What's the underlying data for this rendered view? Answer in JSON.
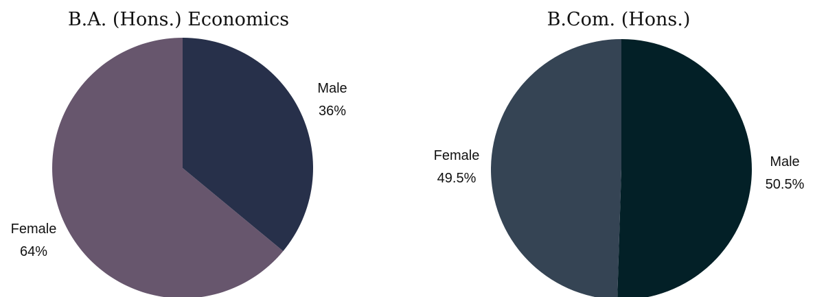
{
  "chart_data": [
    {
      "type": "pie",
      "title": "B.A. (Hons.) Economics",
      "slices": [
        {
          "label": "Male",
          "value": 36,
          "display": "36%",
          "color": "#27304a"
        },
        {
          "label": "Female",
          "value": 64,
          "display": "64%",
          "color": "#67566d"
        }
      ]
    },
    {
      "type": "pie",
      "title": "B.Com. (Hons.)",
      "slices": [
        {
          "label": "Male",
          "value": 50.5,
          "display": "50.5%",
          "color": "#032027"
        },
        {
          "label": "Female",
          "value": 49.5,
          "display": "49.5%",
          "color": "#354454"
        }
      ]
    }
  ]
}
